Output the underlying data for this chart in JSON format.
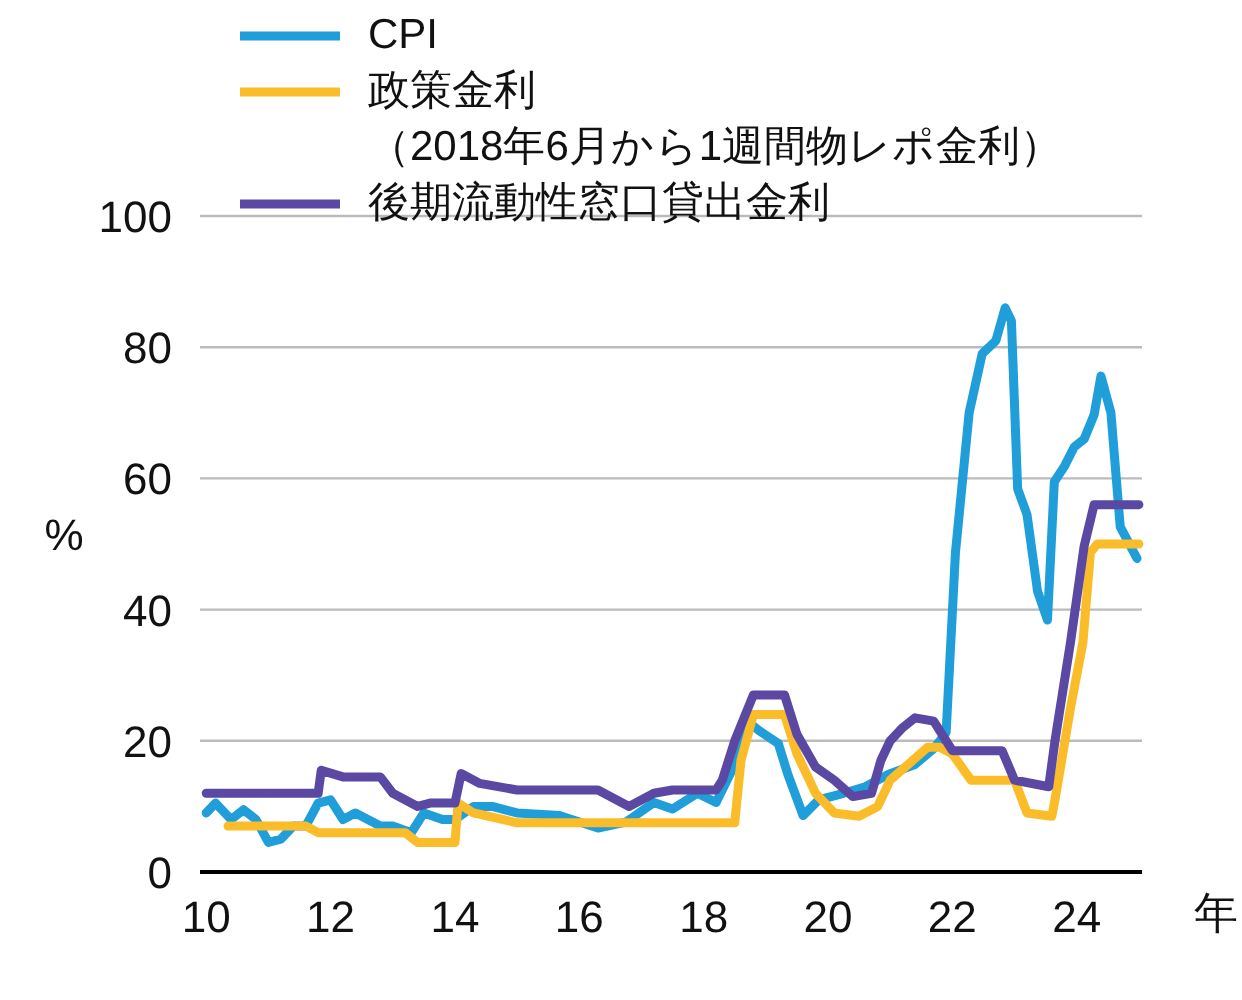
{
  "chart_data": {
    "type": "line",
    "ylabel": "%",
    "xlabel": "年",
    "xlim": [
      9.9,
      25.05
    ],
    "xticks": [
      10,
      12,
      14,
      16,
      18,
      20,
      22,
      24
    ],
    "ylim": [
      0,
      100
    ],
    "yticks": [
      0,
      20,
      40,
      60,
      80,
      100
    ],
    "grid": "y",
    "legend": "top left",
    "marker": "none",
    "line_style": "solid",
    "series": [
      {
        "name": "CPI",
        "color": "#1f9ed9",
        "x": [
          10.0,
          10.15,
          10.4,
          10.6,
          10.8,
          11.0,
          11.2,
          11.4,
          11.6,
          11.8,
          12.0,
          12.2,
          12.4,
          12.6,
          12.8,
          13.0,
          13.3,
          13.5,
          13.8,
          14.0,
          14.3,
          14.6,
          15.0,
          15.68,
          16.3,
          16.75,
          17.2,
          17.5,
          17.9,
          18.2,
          18.5,
          18.7,
          18.9,
          19.2,
          19.35,
          19.6,
          19.85,
          20.25,
          20.6,
          21.0,
          21.4,
          21.7,
          21.8,
          21.9,
          22.05,
          22.27,
          22.48,
          22.7,
          22.85,
          22.95,
          23.05,
          23.2,
          23.37,
          23.53,
          23.64,
          23.8,
          23.96,
          24.12,
          24.28,
          24.39,
          24.55,
          24.7,
          24.97
        ],
        "values": [
          9,
          10.5,
          8,
          9.5,
          8,
          4.5,
          5,
          7,
          7,
          10.5,
          11,
          8,
          9,
          8,
          7,
          7,
          6,
          9,
          8,
          8,
          10,
          10,
          9,
          8.6,
          6.7,
          7.6,
          10.6,
          9.6,
          12,
          10.6,
          16.4,
          23,
          21.5,
          19.6,
          15,
          8.6,
          11,
          12,
          13,
          15,
          16.4,
          18.8,
          20,
          21.3,
          48.7,
          70,
          79,
          81,
          86,
          84,
          58.4,
          54.5,
          42.8,
          38.4,
          59.5,
          61.8,
          64.8,
          66,
          69.7,
          75.6,
          70,
          52.6,
          47.8
        ]
      },
      {
        "name": "政策金利（2018年6月から1週間物レポ金利）",
        "color": "#fbbc2a",
        "x": [
          10.35,
          11.6,
          11.8,
          13.2,
          13.4,
          14.0,
          14.05,
          14.3,
          15.0,
          18.5,
          18.6,
          18.8,
          19.3,
          19.5,
          19.8,
          20.1,
          20.5,
          20.8,
          21.0,
          21.3,
          21.6,
          21.8,
          22.0,
          22.3,
          23.0,
          23.2,
          23.6,
          23.65,
          23.9,
          24.1,
          24.22,
          24.33,
          25.0
        ],
        "values": [
          7,
          7,
          6,
          6,
          4.5,
          4.5,
          10.5,
          9,
          7.5,
          7.5,
          17,
          24,
          24,
          18,
          12,
          9,
          8.5,
          10,
          14,
          16.5,
          19,
          19,
          18,
          14,
          14,
          9,
          8.5,
          11,
          25,
          35,
          48.7,
          50,
          50
        ]
      },
      {
        "name": "後期流動性窓口貸出金利",
        "color": "#5b48a2",
        "x": [
          10.0,
          11.8,
          11.85,
          12.2,
          12.8,
          13.0,
          13.4,
          13.6,
          14.0,
          14.1,
          14.4,
          15.0,
          16.3,
          16.8,
          17.2,
          17.5,
          18.2,
          18.3,
          18.5,
          18.8,
          19.3,
          19.5,
          19.8,
          20.1,
          20.4,
          20.7,
          20.85,
          21.0,
          21.2,
          21.4,
          21.7,
          21.9,
          22.0,
          22.8,
          23.0,
          23.55,
          23.65,
          23.9,
          24.12,
          24.28,
          25.0
        ],
        "values": [
          12,
          12,
          15.5,
          14.5,
          14.5,
          12,
          10,
          10.5,
          10.5,
          15,
          13.5,
          12.5,
          12.5,
          10,
          12,
          12.5,
          12.5,
          14,
          20,
          27,
          27,
          21,
          16,
          14,
          11.5,
          12,
          17,
          20,
          22,
          23.5,
          23,
          20,
          18.5,
          18.5,
          14,
          13,
          20,
          35,
          49.7,
          56,
          56
        ]
      }
    ]
  }
}
